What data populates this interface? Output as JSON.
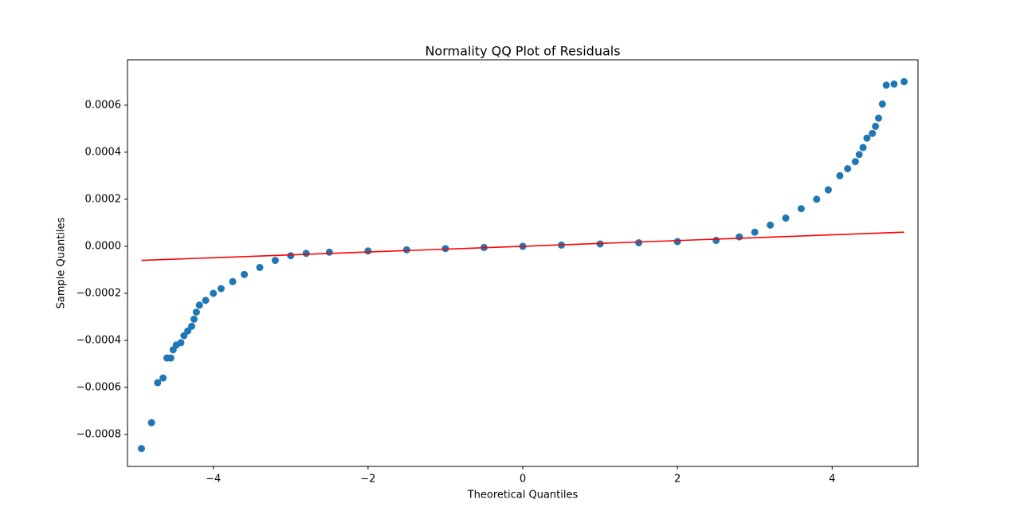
{
  "chart_data": {
    "type": "scatter",
    "title": "Normality QQ Plot of Residuals",
    "x_label": "Theoretical Quantiles",
    "y_label": "Sample Quantiles",
    "xlim": [
      -5.11,
      5.11
    ],
    "xticks": [
      {
        "value": -4,
        "label": "−4"
      },
      {
        "value": -2,
        "label": "−2"
      },
      0,
      2,
      4
    ],
    "ylim": [
      -0.000936,
      0.000793
    ],
    "yticks": [
      {
        "value": -0.0008,
        "label": "−0.0008"
      },
      {
        "value": -0.0006,
        "label": "−0.0006"
      },
      {
        "value": -0.0004,
        "label": "−0.0004"
      },
      {
        "value": -0.0002,
        "label": "−0.0002"
      },
      {
        "value": 0,
        "label": "0.0000"
      },
      0.0002,
      0.0004,
      0.0006
    ],
    "series": [
      {
        "type": "scatter",
        "color": "#1f77b4",
        "x": [
          -4.93,
          -4.8,
          -4.72,
          -4.65,
          -4.6,
          -4.55,
          -4.52,
          -4.48,
          -4.42,
          -4.38,
          -4.33,
          -4.28,
          -4.25,
          -4.22,
          -4.18,
          -4.1,
          -4.0,
          -3.9,
          -3.75,
          -3.6,
          -3.4,
          -3.2,
          -3.0,
          -2.8,
          -2.5,
          -2.0,
          -1.5,
          -1.0,
          -0.5,
          0,
          0.5,
          1.0,
          1.5,
          2.0,
          2.5,
          2.8,
          3.0,
          3.2,
          3.4,
          3.6,
          3.8,
          3.95,
          4.1,
          4.2,
          4.3,
          4.35,
          4.4,
          4.45,
          4.52,
          4.56,
          4.6,
          4.65,
          4.7,
          4.8,
          4.93
        ],
        "values": [
          -0.00086,
          -0.00075,
          -0.00058,
          -0.00056,
          -0.000475,
          -0.000475,
          -0.00044,
          -0.00042,
          -0.00041,
          -0.00038,
          -0.00036,
          -0.00034,
          -0.00031,
          -0.00028,
          -0.00025,
          -0.00023,
          -0.0002,
          -0.00018,
          -0.00015,
          -0.00012,
          -9e-05,
          -6e-05,
          -4e-05,
          -3e-05,
          -2.5e-05,
          -2e-05,
          -1.5e-05,
          -1e-05,
          -5e-06,
          0,
          5e-06,
          1e-05,
          1.5e-05,
          2e-05,
          2.5e-05,
          4e-05,
          6e-05,
          9e-05,
          0.00012,
          0.00016,
          0.0002,
          0.00024,
          0.0003,
          0.00033,
          0.00036,
          0.00039,
          0.00042,
          0.00046,
          0.00048,
          0.00051,
          0.000545,
          0.000605,
          0.000685,
          0.00069,
          0.0007
        ]
      },
      {
        "type": "line",
        "color": "#ff0000",
        "x": [
          -4.93,
          4.93
        ],
        "values": [
          -6e-05,
          6e-05
        ]
      }
    ]
  }
}
